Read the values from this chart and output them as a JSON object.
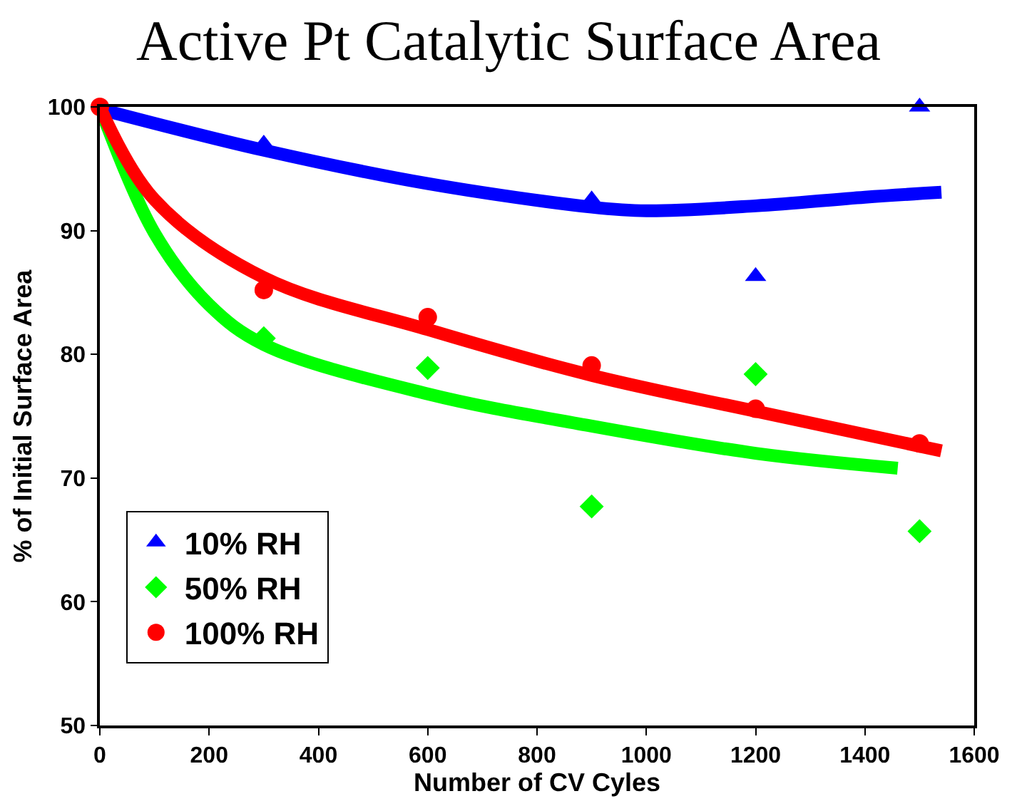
{
  "chart_data": {
    "type": "scatter",
    "title": "Active Pt Catalytic Surface Area",
    "xlabel": "Number of CV Cyles",
    "ylabel": "% of Initial Surface Area",
    "xlim": [
      0,
      1600
    ],
    "xticks": [
      0,
      200,
      400,
      600,
      800,
      1000,
      1200,
      1400,
      1600
    ],
    "ylim": [
      50,
      100
    ],
    "yticks": [
      50,
      60,
      70,
      80,
      90,
      100
    ],
    "legend": "bottom left",
    "series": [
      {
        "name": "10% RH",
        "color": "#0000ff",
        "marker": "triangle",
        "x": [
          300,
          900,
          1200,
          1500
        ],
        "values": [
          97.0,
          92.5,
          86.3,
          100
        ]
      },
      {
        "name": "50% RH",
        "color": "#00ff00",
        "marker": "diamond",
        "x": [
          300,
          600,
          900,
          1200,
          1500
        ],
        "values": [
          81.3,
          78.9,
          67.7,
          78.4,
          65.7
        ]
      },
      {
        "name": "100% RH",
        "color": "#ff0000",
        "marker": "circle",
        "x": [
          0,
          300,
          600,
          900,
          1200,
          1500
        ],
        "values": [
          100,
          85.2,
          83.0,
          79.1,
          75.6,
          72.8
        ]
      },
      {
        "type": "line",
        "color": "#0000ff",
        "marker": "none",
        "x": [
          10,
          300,
          600,
          900,
          1000,
          1200,
          1400,
          1540
        ],
        "values": [
          99.7,
          96.5,
          93.8,
          91.9,
          91.6,
          92.0,
          92.7,
          93.1
        ]
      },
      {
        "type": "line",
        "color": "#00ff00",
        "marker": "none",
        "x": [
          0,
          100,
          200,
          300,
          600,
          900,
          1200,
          1460
        ],
        "values": [
          100,
          89.8,
          84.0,
          80.8,
          76.8,
          74.2,
          72.0,
          70.8
        ]
      },
      {
        "type": "line",
        "color": "#ff0000",
        "marker": "none",
        "x": [
          0,
          100,
          300,
          600,
          900,
          1200,
          1540
        ],
        "values": [
          100,
          92.5,
          86.2,
          82.0,
          78.3,
          75.4,
          72.2
        ]
      }
    ]
  }
}
